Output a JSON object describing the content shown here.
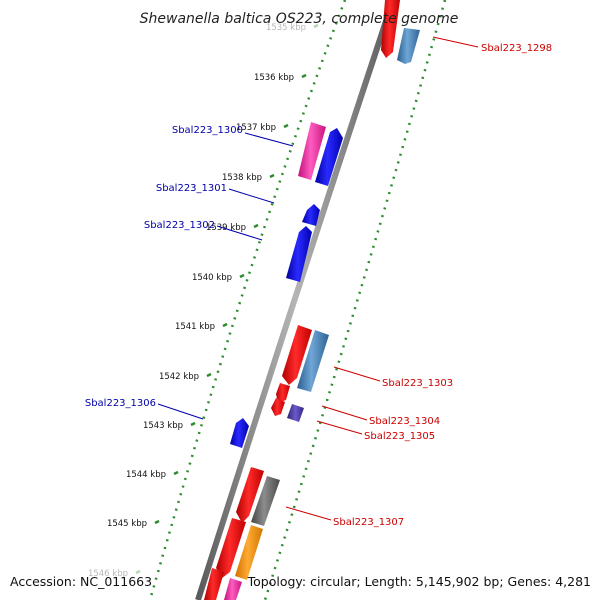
{
  "title": "Shewanella baltica OS223, complete genome",
  "footer": {
    "accession": "Accession: NC_011663",
    "summary": "Topology: circular; Length: 5,145,902 bp; Genes: 4,281"
  },
  "colors": {
    "backbone": "#8a8a8a",
    "ticks": "#2e8b2e",
    "label_left": "#0000aa",
    "label_right": "#cc0000"
  },
  "ticks": [
    {
      "label": "1535 kbp",
      "faded": true
    },
    {
      "label": "1536 kbp"
    },
    {
      "label": "1537 kbp"
    },
    {
      "label": "1538 kbp"
    },
    {
      "label": "1539 kbp"
    },
    {
      "label": "1540 kbp"
    },
    {
      "label": "1541 kbp"
    },
    {
      "label": "1542 kbp"
    },
    {
      "label": "1543 kbp"
    },
    {
      "label": "1544 kbp"
    },
    {
      "label": "1545 kbp"
    },
    {
      "label": "1546 kbp",
      "faded": true
    }
  ],
  "gene_labels": [
    {
      "text": "Sbal223_1298",
      "side": "right"
    },
    {
      "text": "Sbal223_1300",
      "side": "left"
    },
    {
      "text": "Sbal223_1301",
      "side": "left"
    },
    {
      "text": "Sbal223_1302",
      "side": "left"
    },
    {
      "text": "Sbal223_1303",
      "side": "right"
    },
    {
      "text": "Sbal223_1304",
      "side": "right"
    },
    {
      "text": "Sbal223_1305",
      "side": "right"
    },
    {
      "text": "Sbal223_1306",
      "side": "left"
    },
    {
      "text": "Sbal223_1307",
      "side": "right"
    }
  ]
}
